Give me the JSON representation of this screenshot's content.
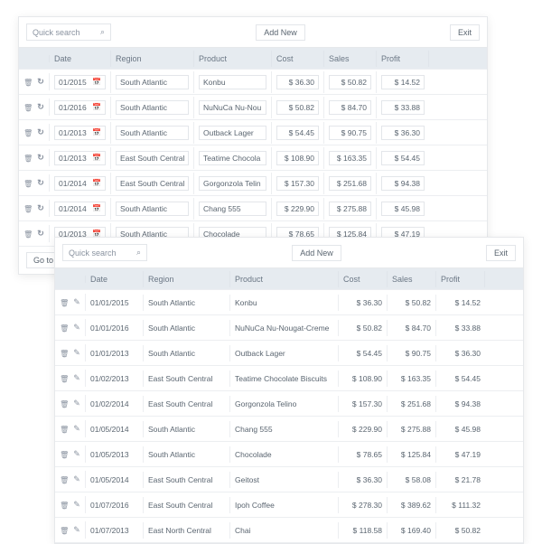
{
  "colors": {
    "header_bg": "#e6ebf0",
    "border": "#e6e8eb",
    "row_border": "#eceef1",
    "text": "#5a6570",
    "muted": "#8a93a0",
    "panel_bg": "#ffffff"
  },
  "toolbar": {
    "search_placeholder": "Quick search",
    "add_new": "Add New",
    "exit": "Exit"
  },
  "headers": {
    "date": "Date",
    "region": "Region",
    "product": "Product",
    "cost": "Cost",
    "sales": "Sales",
    "profit": "Profit"
  },
  "footer": {
    "goto": "Go to"
  },
  "grid_back": {
    "rows": [
      {
        "date": "01/2015",
        "region": "South Atlantic",
        "product": "Konbu",
        "cost": "$ 36.30",
        "sales": "$ 50.82",
        "profit": "$ 14.52"
      },
      {
        "date": "01/2016",
        "region": "South Atlantic",
        "product": "NuNuCa Nu-Nou",
        "cost": "$ 50.82",
        "sales": "$ 84.70",
        "profit": "$ 33.88"
      },
      {
        "date": "01/2013",
        "region": "South Atlantic",
        "product": "Outback Lager",
        "cost": "$ 54.45",
        "sales": "$ 90.75",
        "profit": "$ 36.30"
      },
      {
        "date": "01/2013",
        "region": "East South Central",
        "product": "Teatime Chocola",
        "cost": "$ 108.90",
        "sales": "$ 163.35",
        "profit": "$ 54.45"
      },
      {
        "date": "01/2014",
        "region": "East South Central",
        "product": "Gorgonzola Telin",
        "cost": "$ 157.30",
        "sales": "$ 251.68",
        "profit": "$ 94.38"
      },
      {
        "date": "01/2014",
        "region": "South Atlantic",
        "product": "Chang 555",
        "cost": "$ 229.90",
        "sales": "$ 275.88",
        "profit": "$ 45.98"
      },
      {
        "date": "01/2013",
        "region": "South Atlantic",
        "product": "Chocolade",
        "cost": "$ 78.65",
        "sales": "$ 125.84",
        "profit": "$ 47.19"
      }
    ]
  },
  "grid_front": {
    "rows": [
      {
        "date": "01/01/2015",
        "region": "South Atlantic",
        "product": "Konbu",
        "cost": "$ 36.30",
        "sales": "$ 50.82",
        "profit": "$ 14.52"
      },
      {
        "date": "01/01/2016",
        "region": "South Atlantic",
        "product": "NuNuCa Nu-Nougat-Creme",
        "cost": "$ 50.82",
        "sales": "$ 84.70",
        "profit": "$ 33.88"
      },
      {
        "date": "01/01/2013",
        "region": "South Atlantic",
        "product": "Outback Lager",
        "cost": "$ 54.45",
        "sales": "$ 90.75",
        "profit": "$ 36.30"
      },
      {
        "date": "01/02/2013",
        "region": "East South Central",
        "product": "Teatime Chocolate Biscuits",
        "cost": "$ 108.90",
        "sales": "$ 163.35",
        "profit": "$ 54.45"
      },
      {
        "date": "01/02/2014",
        "region": "East South Central",
        "product": "Gorgonzola Telino",
        "cost": "$ 157.30",
        "sales": "$ 251.68",
        "profit": "$ 94.38"
      },
      {
        "date": "01/05/2014",
        "region": "South Atlantic",
        "product": "Chang 555",
        "cost": "$ 229.90",
        "sales": "$ 275.88",
        "profit": "$ 45.98"
      },
      {
        "date": "01/05/2013",
        "region": "South Atlantic",
        "product": "Chocolade",
        "cost": "$ 78.65",
        "sales": "$ 125.84",
        "profit": "$ 47.19"
      },
      {
        "date": "01/05/2014",
        "region": "East South Central",
        "product": "Geitost",
        "cost": "$ 36.30",
        "sales": "$ 58.08",
        "profit": "$ 21.78"
      },
      {
        "date": "01/07/2016",
        "region": "East South Central",
        "product": "Ipoh Coffee",
        "cost": "$ 278.30",
        "sales": "$ 389.62",
        "profit": "$ 111.32"
      },
      {
        "date": "01/07/2013",
        "region": "East North Central",
        "product": "Chai",
        "cost": "$ 118.58",
        "sales": "$ 169.40",
        "profit": "$ 50.82"
      }
    ]
  }
}
